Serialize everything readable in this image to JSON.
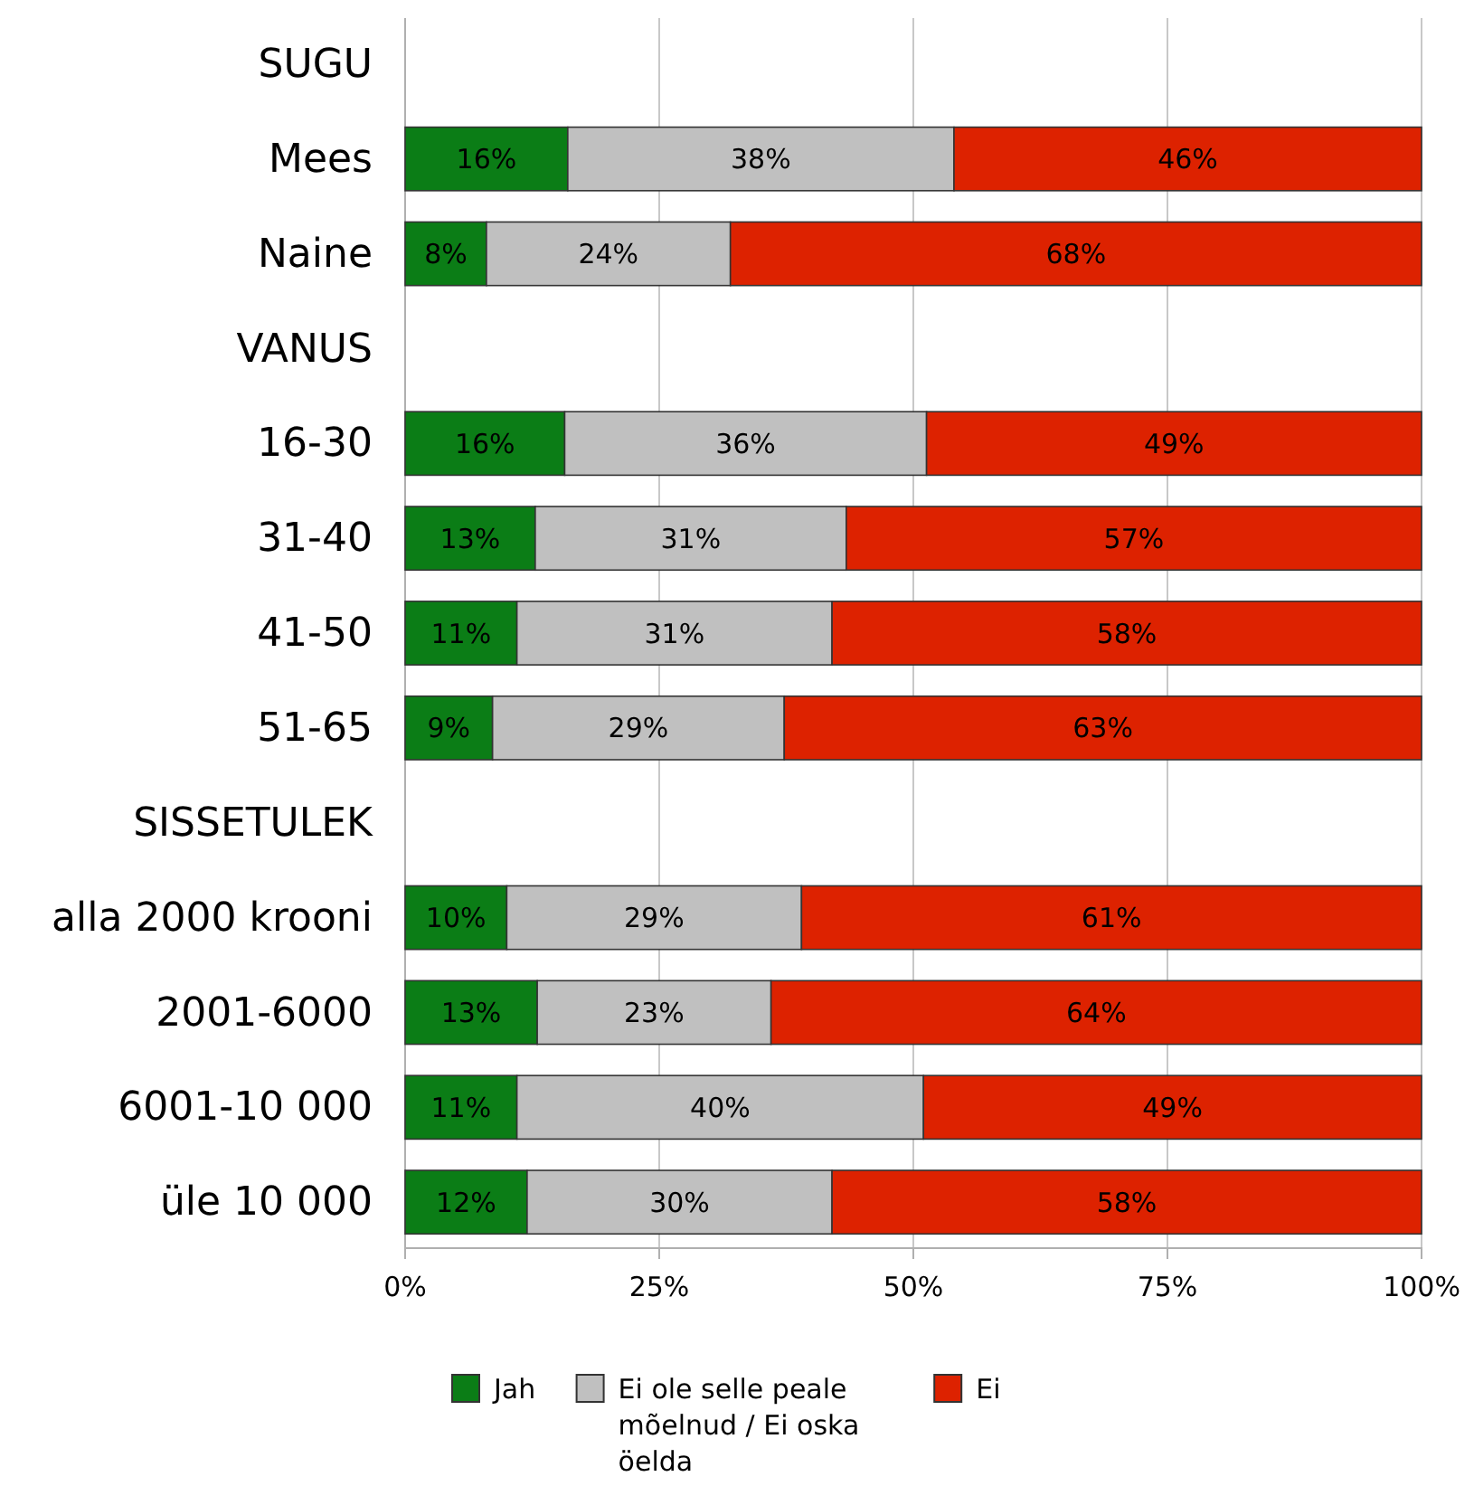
{
  "chart_data": {
    "type": "bar",
    "orientation": "horizontal",
    "stacked": true,
    "categories": [
      "SUGU",
      "Mees",
      "Naine",
      "VANUS",
      "16-30",
      "31-40",
      "41-50",
      "51-65",
      "SISSETULEK",
      "alla 2000 krooni",
      "2001-6000",
      "6001-10 000",
      "üle 10 000"
    ],
    "series": [
      {
        "name": "Jah",
        "color": "#0b7d16",
        "values": [
          null,
          16,
          8,
          null,
          15.7,
          12.8,
          11,
          8.6,
          null,
          10,
          13,
          11,
          12
        ],
        "value_labels": [
          null,
          "16%",
          "8%",
          null,
          "16%",
          "13%",
          "11%",
          "9%",
          null,
          "10%",
          "13%",
          "11%",
          "12%"
        ]
      },
      {
        "name": "Ei ole selle peale mõelnud / Ei oska öelda",
        "color": "#c0c0c0",
        "values": [
          null,
          38,
          24,
          null,
          35.6,
          30.6,
          31,
          28.7,
          null,
          29,
          23,
          40,
          30
        ],
        "value_labels": [
          null,
          "38%",
          "24%",
          null,
          "36%",
          "31%",
          "31%",
          "29%",
          null,
          "29%",
          "23%",
          "40%",
          "30%"
        ]
      },
      {
        "name": "Ei",
        "color": "#dd2200",
        "values": [
          null,
          46,
          68,
          null,
          48.7,
          56.6,
          58,
          62.7,
          null,
          61,
          64,
          49,
          58
        ],
        "value_labels": [
          null,
          "46%",
          "68%",
          null,
          "49%",
          "57%",
          "58%",
          "63%",
          null,
          "61%",
          "64%",
          "49%",
          "58%"
        ]
      }
    ],
    "xlim": [
      0,
      100
    ],
    "xticks": [
      {
        "value": 0,
        "label": "0%"
      },
      {
        "value": 25,
        "label": "25%"
      },
      {
        "value": 50,
        "label": "50%"
      },
      {
        "value": 75,
        "label": "75%"
      },
      {
        "value": 100,
        "label": "100%"
      }
    ],
    "grid": "x",
    "legend": "bottom"
  }
}
